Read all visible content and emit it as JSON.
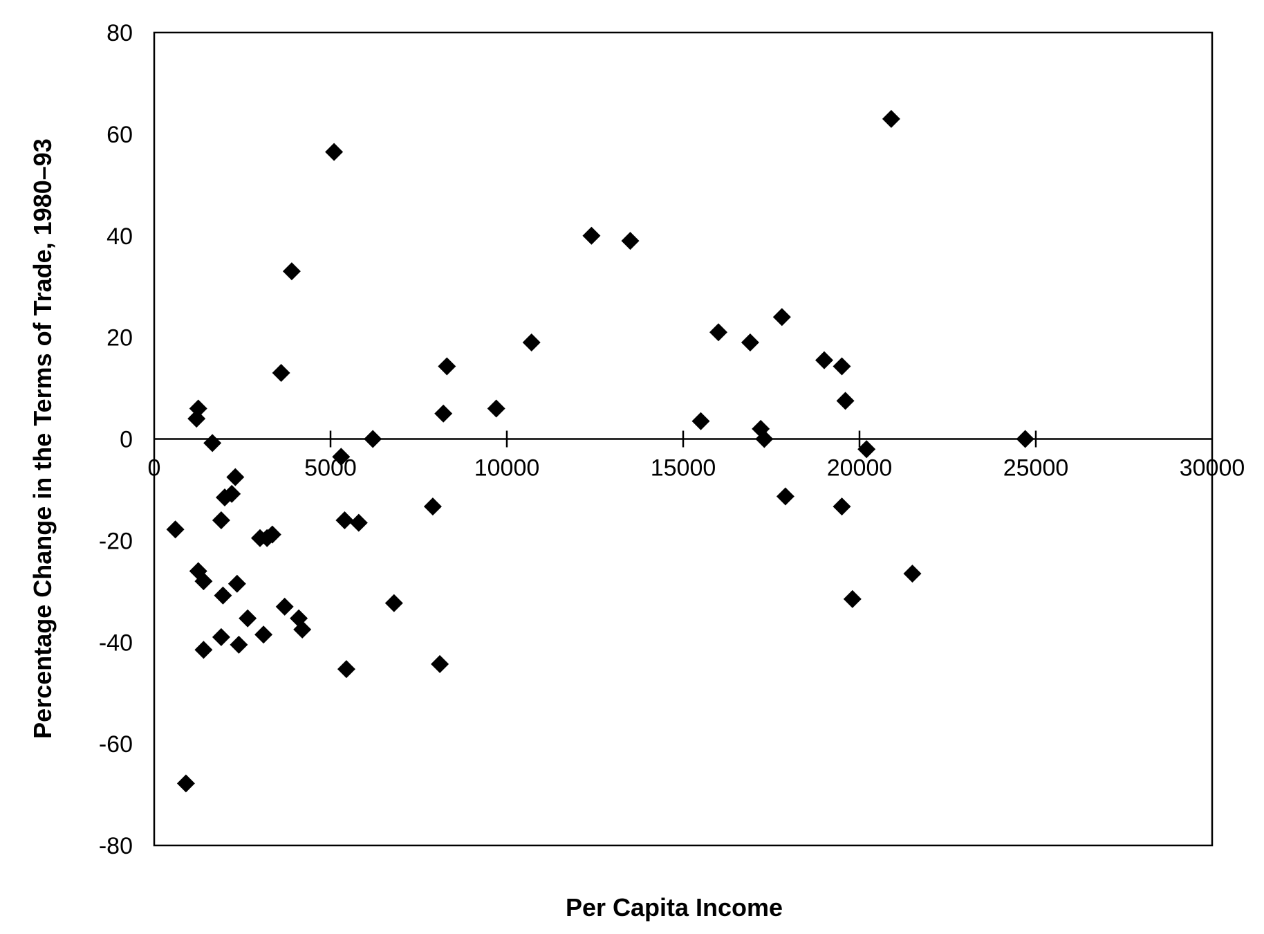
{
  "chart_data": {
    "type": "scatter",
    "title": "",
    "xlabel": "Per Capita Income",
    "ylabel": "Percentage Change in the Terms of Trade, 1980–93",
    "xlim": [
      0,
      30000
    ],
    "ylim": [
      -80,
      80
    ],
    "xticks": [
      0,
      5000,
      10000,
      15000,
      20000,
      25000,
      30000
    ],
    "yticks": [
      -80,
      -60,
      -40,
      -20,
      0,
      20,
      40,
      60,
      80
    ],
    "grid": false,
    "legend": "none",
    "marker": "diamond",
    "marker_color": "#000000",
    "series": [
      {
        "points": [
          [
            600,
            -17.8
          ],
          [
            900,
            -67.8
          ],
          [
            1200,
            4.0
          ],
          [
            1250,
            6.0
          ],
          [
            1250,
            -26.0
          ],
          [
            1400,
            -28.0
          ],
          [
            1400,
            -41.5
          ],
          [
            1650,
            -0.8
          ],
          [
            1900,
            -16.0
          ],
          [
            1900,
            -39.0
          ],
          [
            1950,
            -30.8
          ],
          [
            2000,
            -11.5
          ],
          [
            2200,
            -10.8
          ],
          [
            2300,
            -7.5
          ],
          [
            2350,
            -28.5
          ],
          [
            2400,
            -40.5
          ],
          [
            2650,
            -35.3
          ],
          [
            3000,
            -19.5
          ],
          [
            3100,
            -38.5
          ],
          [
            3200,
            -19.5
          ],
          [
            3350,
            -18.8
          ],
          [
            3600,
            13.0
          ],
          [
            3700,
            -33.0
          ],
          [
            3900,
            33.0
          ],
          [
            4100,
            -35.3
          ],
          [
            4200,
            -37.5
          ],
          [
            5100,
            56.5
          ],
          [
            5300,
            -3.5
          ],
          [
            5400,
            -16.0
          ],
          [
            5450,
            -45.3
          ],
          [
            5800,
            -16.5
          ],
          [
            6200,
            0.0
          ],
          [
            6800,
            -32.3
          ],
          [
            7900,
            -13.3
          ],
          [
            8100,
            -44.3
          ],
          [
            8200,
            5.0
          ],
          [
            8300,
            14.3
          ],
          [
            9700,
            6.0
          ],
          [
            10700,
            19.0
          ],
          [
            12400,
            40.0
          ],
          [
            13500,
            39.0
          ],
          [
            15500,
            3.5
          ],
          [
            16000,
            21.0
          ],
          [
            16900,
            19.0
          ],
          [
            17200,
            2.0
          ],
          [
            17300,
            0.0
          ],
          [
            17800,
            24.0
          ],
          [
            17900,
            -11.3
          ],
          [
            19000,
            15.5
          ],
          [
            19500,
            14.3
          ],
          [
            19500,
            -13.3
          ],
          [
            19600,
            7.5
          ],
          [
            19800,
            -31.5
          ],
          [
            20200,
            -2.0
          ],
          [
            20900,
            63.0
          ],
          [
            21500,
            -26.5
          ],
          [
            24700,
            0.0
          ]
        ]
      }
    ]
  }
}
